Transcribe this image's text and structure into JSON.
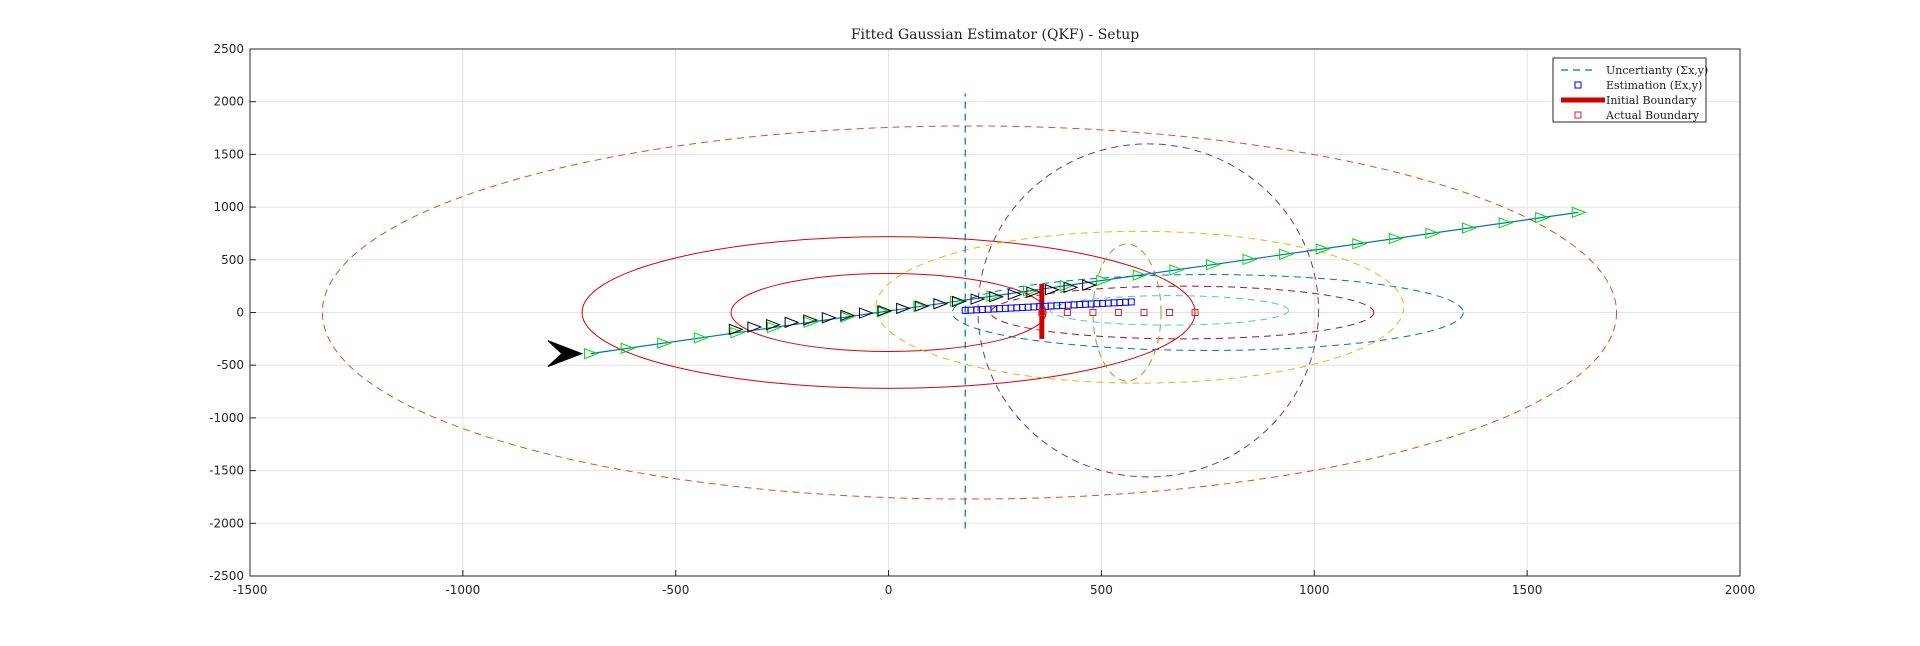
{
  "chart_data": {
    "type": "line",
    "title": "Fitted Gaussian Estimator (QKF) - Setup",
    "xlabel": "",
    "ylabel": "",
    "xlim": [
      -1500,
      2000
    ],
    "ylim": [
      -2500,
      2500
    ],
    "x_ticks": [
      -1500,
      -1000,
      -500,
      0,
      500,
      1000,
      1500,
      2000
    ],
    "y_ticks": [
      -2500,
      -2000,
      -1500,
      -1000,
      -500,
      0,
      500,
      1000,
      1500,
      2000,
      2500
    ],
    "grid": true,
    "legend_position": "top-right",
    "legend": [
      {
        "label": "Uncertianty (Σx,y)",
        "style": "dashed-line",
        "color": "#0072BD"
      },
      {
        "label": "Estimation (Ex,y)",
        "style": "square-marker",
        "color": "#0000FF"
      },
      {
        "label": "Initial Boundary",
        "style": "thick-line",
        "color": "#CC0000"
      },
      {
        "label": "Actual Boundary",
        "style": "square-marker",
        "color": "#D62728"
      }
    ],
    "trajectory_line": {
      "x": [
        -700,
        1620
      ],
      "y": [
        -390,
        950
      ],
      "color": "#0072BD"
    },
    "vertical_dashed_line": {
      "x": 180,
      "y": [
        -2050,
        2080
      ],
      "color": "#0072BD"
    },
    "initial_boundary": {
      "x": 360,
      "y": [
        -250,
        270
      ],
      "color": "#CC0000"
    },
    "green_track": {
      "x_start": -700,
      "x_end": 1620,
      "y_start": -390,
      "y_end": 950,
      "count": 28,
      "color": "#00DD00"
    },
    "black_track": {
      "x_start": -360,
      "x_end": 470,
      "y_start": -160,
      "y_end": 260,
      "count": 20,
      "color": "#000000"
    },
    "start_marker": {
      "x": -730,
      "y": -390,
      "color": "#000000"
    },
    "estimation_points": {
      "x_start": 180,
      "x_end": 570,
      "y_start": 20,
      "y_end": 100,
      "count": 30,
      "color": "#0000FF"
    },
    "actual_boundary_points": {
      "x": [
        360,
        420,
        480,
        540,
        600,
        660,
        720
      ],
      "y": [
        0,
        0,
        0,
        0,
        0,
        0,
        0
      ],
      "color": "#D62728"
    },
    "ellipses": [
      {
        "cx": 190,
        "cy": 0,
        "rx": 1520,
        "ry": 1770,
        "rot": 0,
        "dashed": true,
        "color": "#D95319"
      },
      {
        "cx": 0,
        "cy": 0,
        "rx": 720,
        "ry": 720,
        "rot": 0,
        "dashed": false,
        "color": "#E00000"
      },
      {
        "cx": 0,
        "cy": 0,
        "rx": 370,
        "ry": 370,
        "rot": 0,
        "dashed": false,
        "color": "#E00000"
      },
      {
        "cx": 590,
        "cy": 50,
        "rx": 620,
        "ry": 720,
        "rot": 0,
        "dashed": true,
        "color": "#EDB120"
      },
      {
        "cx": 610,
        "cy": 20,
        "rx": 400,
        "ry": 1580,
        "rot": 0,
        "dashed": true,
        "color": "#7E2F8E"
      },
      {
        "cx": 750,
        "cy": 0,
        "rx": 600,
        "ry": 360,
        "rot": 0,
        "dashed": true,
        "color": "#0072BD"
      },
      {
        "cx": 690,
        "cy": 0,
        "rx": 450,
        "ry": 250,
        "rot": 0,
        "dashed": true,
        "color": "#A2142F"
      },
      {
        "cx": 660,
        "cy": 20,
        "rx": 280,
        "ry": 140,
        "rot": 0,
        "dashed": true,
        "color": "#4DBEEE"
      },
      {
        "cx": 560,
        "cy": 0,
        "rx": 80,
        "ry": 650,
        "rot": 0,
        "dashed": true,
        "color": "#77AC30"
      }
    ]
  }
}
